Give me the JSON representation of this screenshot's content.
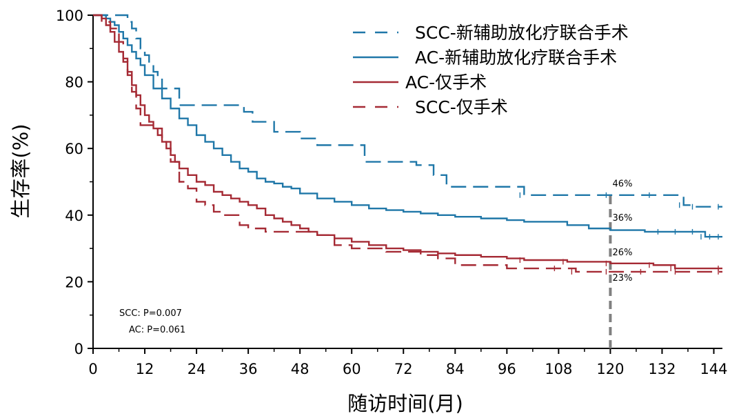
{
  "chart_data": {
    "type": "line",
    "title": "",
    "xlabel": "随访时间(月)",
    "ylabel": "生存率(%)",
    "xlim": [
      0,
      146
    ],
    "ylim": [
      0,
      100
    ],
    "x_ticks": [
      0,
      12,
      24,
      36,
      48,
      60,
      72,
      84,
      96,
      108,
      120,
      132,
      144
    ],
    "y_ticks": [
      0,
      20,
      40,
      60,
      80,
      100
    ],
    "grid": false,
    "legend_position": "top-right",
    "series": [
      {
        "name": "SCC-新辅助放化疗联合手术",
        "color": "#1f77a8",
        "dash": "dashed",
        "x": [
          2,
          7,
          8,
          9,
          10,
          11,
          12,
          13,
          14,
          15,
          16,
          17,
          18,
          20,
          26,
          30,
          35,
          37,
          42,
          48,
          52,
          56,
          60,
          63,
          66,
          72,
          75,
          79,
          82,
          90,
          100,
          120,
          130,
          137,
          140,
          146
        ],
        "y": [
          100,
          100,
          98,
          96,
          93,
          90,
          88,
          85,
          83,
          81,
          78,
          78,
          78,
          73,
          73,
          73,
          71,
          68,
          65,
          63,
          61,
          61,
          61,
          56,
          56,
          56,
          55,
          52,
          48.5,
          48.5,
          46,
          46,
          46,
          43,
          42.5,
          42.5
        ]
      },
      {
        "name": "AC-新辅助放化疗联合手术",
        "color": "#1f77a8",
        "dash": "solid",
        "x": [
          2,
          3,
          4,
          5,
          6,
          7,
          8,
          9,
          10,
          11,
          12,
          14,
          16,
          18,
          20,
          22,
          24,
          26,
          28,
          30,
          32,
          34,
          36,
          38,
          40,
          42,
          44,
          46,
          48,
          52,
          56,
          60,
          64,
          68,
          72,
          76,
          80,
          84,
          90,
          96,
          100,
          108,
          110,
          115,
          120,
          128,
          132,
          136,
          140,
          142,
          144,
          146
        ],
        "y": [
          100,
          99,
          98,
          97,
          95,
          93,
          91,
          89,
          87,
          85,
          82,
          78,
          75,
          72,
          69,
          67,
          64,
          62,
          60,
          58,
          56,
          54,
          53,
          51,
          50,
          49.5,
          48.5,
          48,
          46.5,
          45,
          44,
          43,
          42,
          41.5,
          41,
          40.5,
          40,
          39.5,
          39,
          38.5,
          38,
          38,
          37,
          36,
          35.5,
          35,
          35,
          35,
          35,
          33.5,
          33.5,
          33.5
        ]
      },
      {
        "name": "AC-仅手术",
        "color": "#a52a34",
        "dash": "solid",
        "x": [
          2,
          3,
          4,
          5,
          6,
          7,
          8,
          9,
          10,
          11,
          12,
          13,
          14,
          15,
          16,
          17,
          18,
          19,
          20,
          22,
          24,
          26,
          28,
          30,
          32,
          34,
          36,
          38,
          40,
          42,
          44,
          46,
          48,
          50,
          52,
          56,
          60,
          64,
          68,
          72,
          76,
          80,
          84,
          90,
          96,
          100,
          110,
          120,
          130,
          135,
          146
        ],
        "y": [
          99,
          97,
          95,
          92,
          89,
          86,
          83,
          79,
          76,
          73,
          70,
          68,
          66,
          64,
          62,
          60,
          58,
          56,
          54,
          52,
          50,
          49,
          47,
          46,
          45,
          44,
          43,
          42,
          40,
          39,
          38,
          37,
          36,
          35,
          34,
          33,
          32,
          31,
          30,
          29.5,
          29,
          28.5,
          28,
          27.5,
          27,
          26.5,
          26,
          25.5,
          25,
          24,
          24
        ]
      },
      {
        "name": "SCC-仅手术",
        "color": "#a52a34",
        "dash": "dashed",
        "x": [
          2,
          4,
          6,
          7,
          8,
          9,
          10,
          11,
          12,
          14,
          16,
          18,
          20,
          22,
          24,
          26,
          28,
          30,
          32,
          34,
          36,
          38,
          40,
          44,
          48,
          52,
          56,
          60,
          64,
          68,
          72,
          76,
          80,
          84,
          96,
          108,
          112,
          120,
          128,
          136,
          146
        ],
        "y": [
          98,
          96,
          92,
          87,
          82,
          77,
          72,
          67,
          67,
          66,
          62,
          56,
          50,
          48,
          44,
          43,
          41,
          40,
          40,
          37,
          36,
          36,
          35,
          35,
          35,
          34,
          31,
          30,
          30,
          29,
          29,
          28,
          27,
          25,
          24,
          24,
          23,
          23,
          23,
          23,
          23
        ]
      }
    ],
    "reference_line": {
      "x": 120,
      "color": "#808080"
    },
    "annotations": [
      {
        "text": "46%",
        "x": 120.5,
        "y": 48.5
      },
      {
        "text": "36%",
        "x": 120.5,
        "y": 38.3
      },
      {
        "text": "26%",
        "x": 120.5,
        "y": 28.0
      },
      {
        "text": "23%",
        "x": 120.5,
        "y": 20.3
      }
    ],
    "p_values": [
      "SCC: P=0.007",
      "AC: P=0.061"
    ]
  }
}
